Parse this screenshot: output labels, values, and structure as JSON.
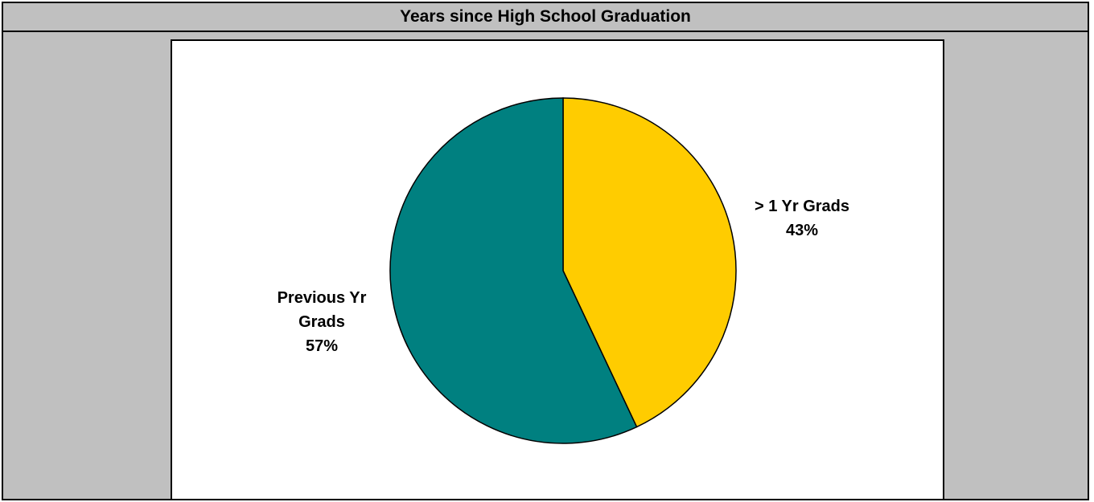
{
  "chart_data": {
    "type": "pie",
    "title": "Years since High School Graduation",
    "slices": [
      {
        "label_lines": [
          "> 1 Yr Grads"
        ],
        "percent_label": "43%",
        "value": 43,
        "color": "#ffcc00"
      },
      {
        "label_lines": [
          "Previous Yr",
          "Grads"
        ],
        "percent_label": "57%",
        "value": 57,
        "color": "#008080"
      }
    ],
    "start_angle_deg": 0,
    "direction": "clockwise",
    "legend": "none"
  }
}
